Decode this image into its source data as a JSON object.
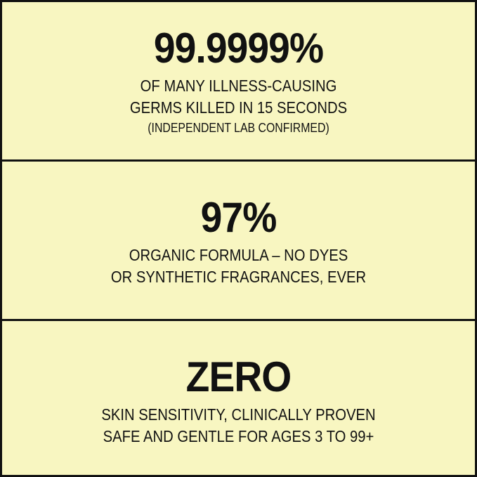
{
  "colors": {
    "background": "#f8f6c1",
    "border": "#111111",
    "text": "#111111"
  },
  "panels": [
    {
      "headline": "99.9999%",
      "lines": [
        "OF MANY ILLNESS-CAUSING",
        "GERMS KILLED IN 15 SECONDS"
      ],
      "note": "(INDEPENDENT LAB CONFIRMED)"
    },
    {
      "headline": "97%",
      "lines": [
        "ORGANIC FORMULA – NO DYES",
        "OR SYNTHETIC FRAGRANCES, EVER"
      ]
    },
    {
      "headline": "ZERO",
      "lines": [
        "SKIN SENSITIVITY, CLINICALLY PROVEN",
        "SAFE AND GENTLE FOR  AGES 3 TO 99+"
      ]
    }
  ]
}
